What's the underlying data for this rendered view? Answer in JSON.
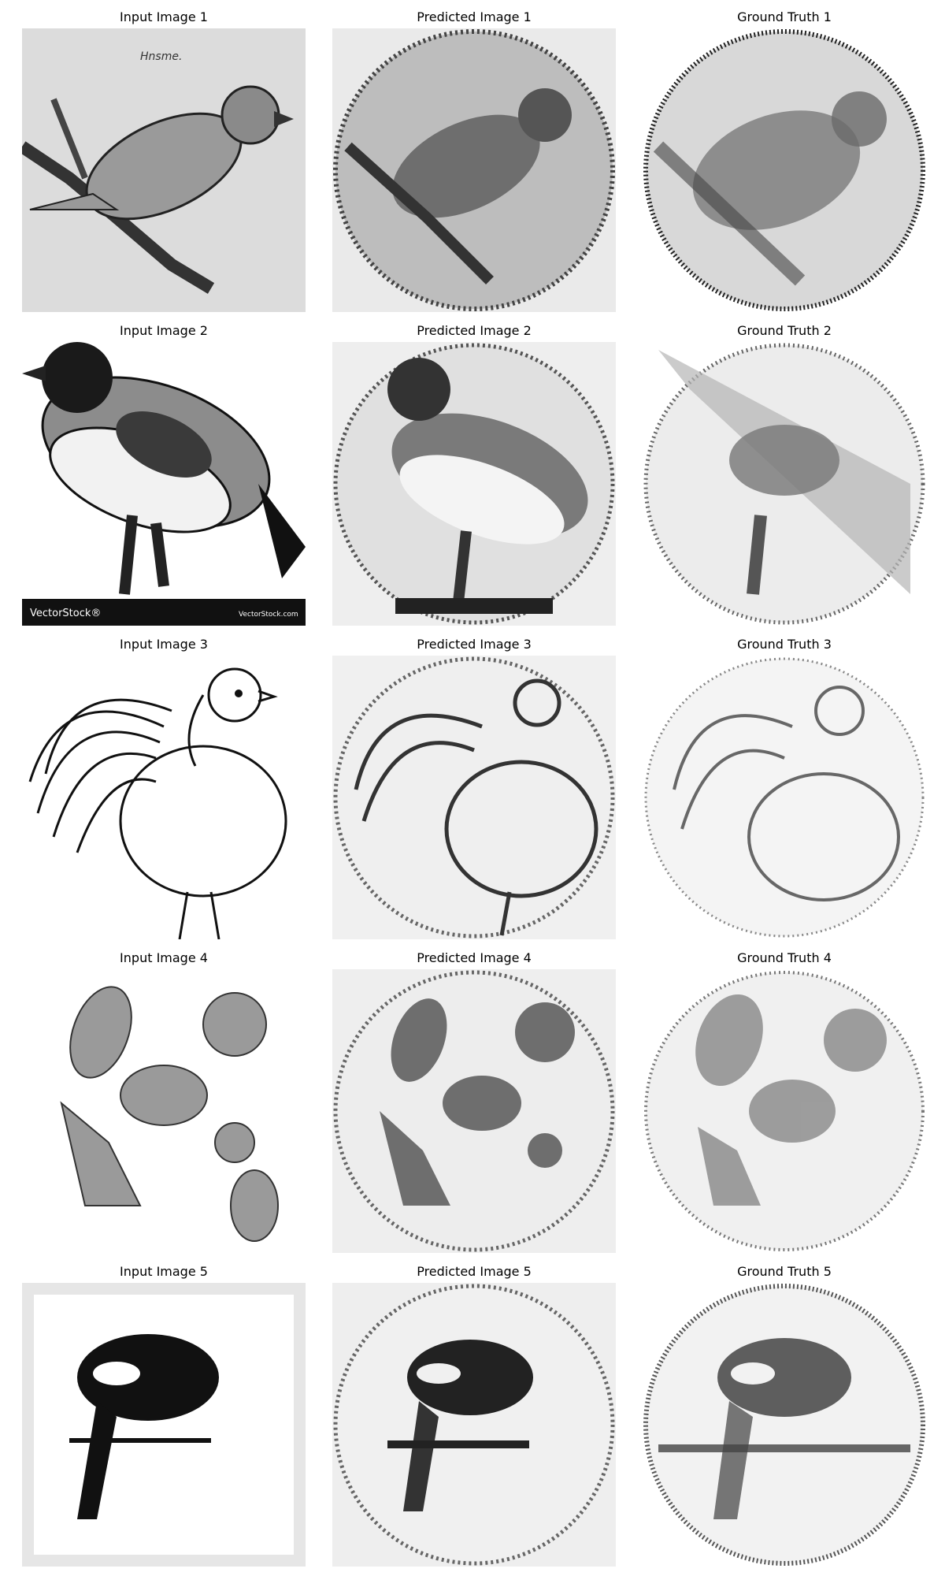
{
  "figure": {
    "rows": [
      {
        "input_title": "Input Image 1",
        "predicted_title": "Predicted Image 1",
        "truth_title": "Ground Truth 1",
        "input_signature": "Hnsme."
      },
      {
        "input_title": "Input Image 2",
        "predicted_title": "Predicted Image 2",
        "truth_title": "Ground Truth 2",
        "watermark_left": "VectorStock®",
        "watermark_right": "VectorStock.com"
      },
      {
        "input_title": "Input Image 3",
        "predicted_title": "Predicted Image 3",
        "truth_title": "Ground Truth 3"
      },
      {
        "input_title": "Input Image 4",
        "predicted_title": "Predicted Image 4",
        "truth_title": "Ground Truth 4"
      },
      {
        "input_title": "Input Image 5",
        "predicted_title": "Predicted Image 5",
        "truth_title": "Ground Truth 5"
      }
    ]
  }
}
